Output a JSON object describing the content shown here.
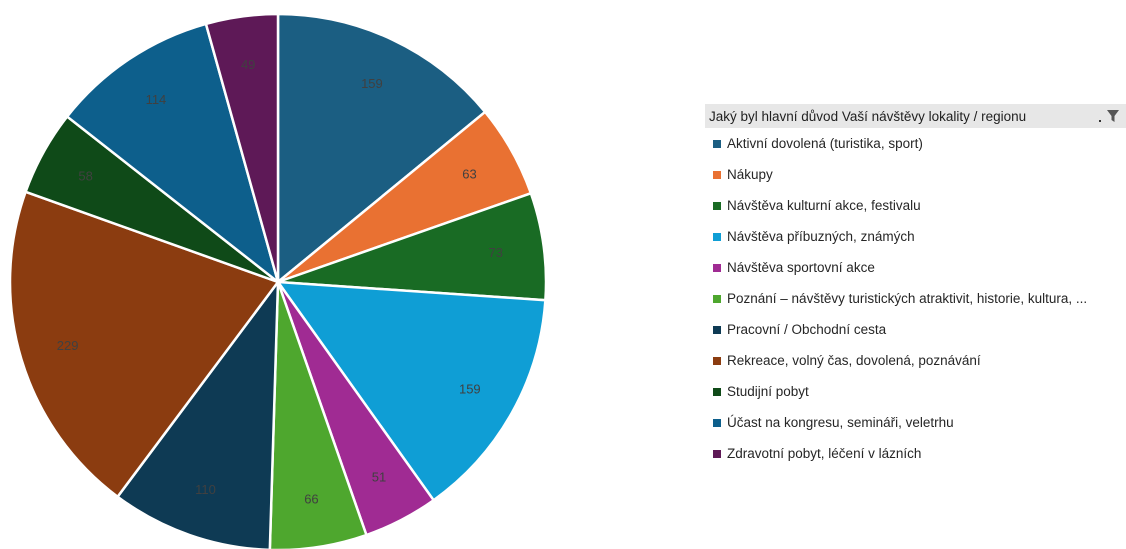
{
  "legend": {
    "title": "Jaký byl hlavní důvod Vaší návštěvy lokality / regionu",
    "filter_icon": "funnel-filter-icon"
  },
  "chart_data": {
    "type": "pie",
    "title": "",
    "start_angle_deg": 0,
    "direction": "clockwise",
    "categories": [
      "Aktivní dovolená (turistika, sport)",
      "Nákupy",
      "Návštěva kulturní akce, festivalu",
      "Návštěva příbuzných, známých",
      "Návštěva sportovní akce",
      "Poznání – návštěvy turistických atraktivit, historie, kultura, ...",
      "Pracovní / Obchodní cesta",
      "Rekreace, volný čas, dovolená, poznávání",
      "Studijní pobyt",
      "Účast na kongresu, semináři, veletrhu",
      "Zdravotní pobyt, léčení v lázních"
    ],
    "values": [
      159,
      63,
      73,
      159,
      51,
      66,
      110,
      229,
      58,
      114,
      49
    ],
    "colors": [
      "#1b5e82",
      "#e97132",
      "#196b24",
      "#0f9ed5",
      "#a02b93",
      "#4ea72e",
      "#0e3a54",
      "#8b3c10",
      "#0f4a18",
      "#0d5f8c",
      "#5e1957"
    ],
    "label_colors": [
      "#404040",
      "#404040",
      "#404040",
      "#404040",
      "#404040",
      "#404040",
      "#404040",
      "#404040",
      "#404040",
      "#404040",
      "#404040"
    ],
    "legend_position": "right"
  }
}
